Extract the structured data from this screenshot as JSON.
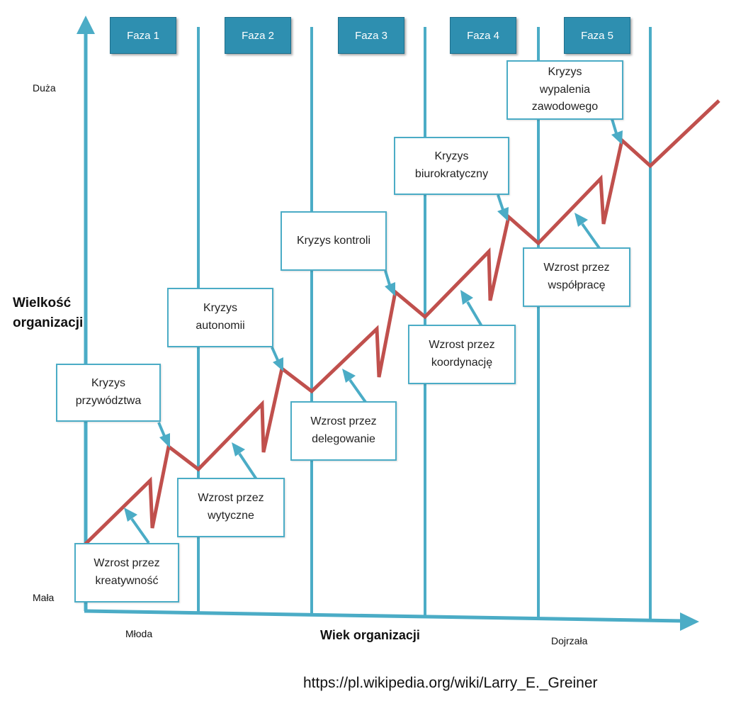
{
  "phases": [
    "Faza 1",
    "Faza 2",
    "Faza 3",
    "Faza 4",
    "Faza 5"
  ],
  "y_axis": {
    "label": "Wielkość\norganizacji",
    "top": "Duża",
    "bottom": "Mała"
  },
  "x_axis": {
    "label": "Wiek organizacji",
    "left": "Młoda",
    "right": "Dojrzała"
  },
  "crises": [
    "Kryzys\nprzywództwa",
    "Kryzys\nautonomii",
    "Kryzys kontroli",
    "Kryzys\nbiurokratyczny",
    "Kryzys\nwypalenia\nzawodowego"
  ],
  "growths": [
    "Wzrost przez\nkreatywność",
    "Wzrost przez\nwytyczne",
    "Wzrost przez\ndelegowanie",
    "Wzrost przez\nkoordynację",
    "Wzrost przez\nwspółpracę"
  ],
  "source": "https://pl.wikipedia.org/wiki/Larry_E._Greiner",
  "colors": {
    "axis": "#4bacc6",
    "curve": "#c0504d",
    "tab": "#2e8fb0"
  }
}
